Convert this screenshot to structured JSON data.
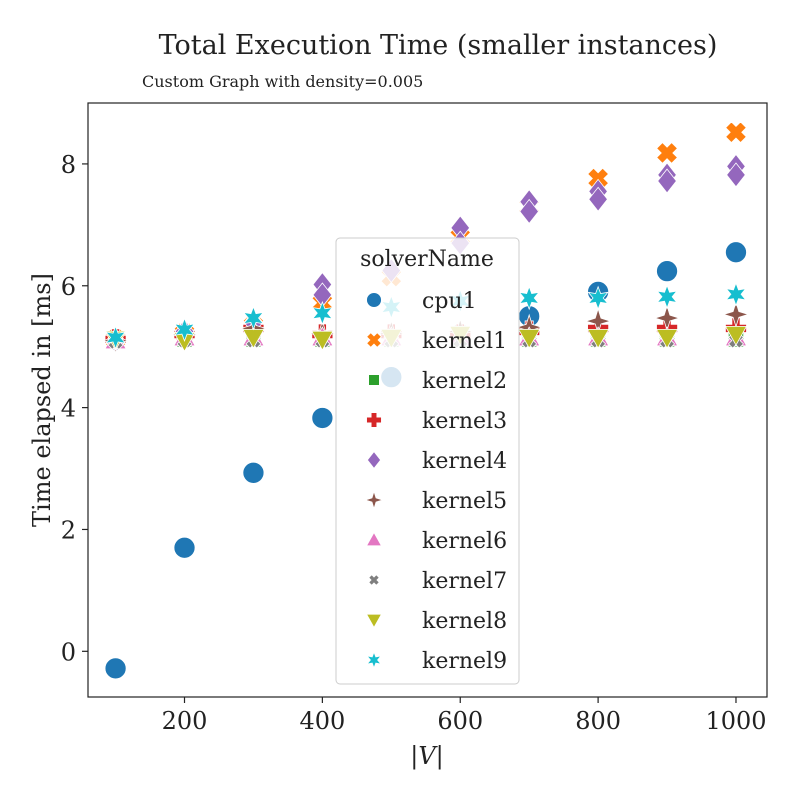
{
  "chart_data": {
    "type": "scatter",
    "title": "Total Execution Time (smaller instances)",
    "subtitle": "Custom Graph with density=0.005",
    "xlabel": "|V|",
    "ylabel": "Time elapsed in [ms]",
    "xlim": [
      60,
      1045
    ],
    "ylim": [
      -0.75,
      9.0
    ],
    "xticks": [
      200,
      400,
      600,
      800,
      1000
    ],
    "yticks": [
      0,
      2,
      4,
      6,
      8
    ],
    "legend_title": "solverName",
    "legend_position": "center",
    "grid": false,
    "series": [
      {
        "name": "cpu1",
        "color": "#1f77b4",
        "marker": "circle",
        "x": [
          100,
          200,
          300,
          400,
          500,
          600,
          700,
          800,
          900,
          1000
        ],
        "y": [
          -0.28,
          1.7,
          2.93,
          3.83,
          4.5,
          5.2,
          5.5,
          5.9,
          6.24,
          6.55
        ]
      },
      {
        "name": "kernel1",
        "color": "#ff7f0e",
        "marker": "x",
        "x": [
          100,
          200,
          300,
          400,
          500,
          600,
          700,
          800,
          900,
          1000
        ],
        "y": [
          5.12,
          5.22,
          5.35,
          5.72,
          6.15,
          6.8,
          7.3,
          7.76,
          8.18,
          8.52
        ]
      },
      {
        "name": "kernel2",
        "color": "#2ca02c",
        "marker": "square",
        "x": [
          100,
          200,
          300,
          400,
          500,
          600,
          700,
          800,
          900,
          1000
        ],
        "y": [
          5.1,
          5.12,
          5.12,
          5.12,
          5.12,
          5.12,
          5.12,
          5.12,
          5.12,
          5.12
        ]
      },
      {
        "name": "kernel3",
        "color": "#d62728",
        "marker": "plus",
        "x": [
          100,
          200,
          300,
          400,
          500,
          600,
          700,
          800,
          900,
          1000
        ],
        "y": [
          5.12,
          5.2,
          5.3,
          5.2,
          5.2,
          5.2,
          5.25,
          5.3,
          5.3,
          5.3
        ]
      },
      {
        "name": "kernel4",
        "color": "#9467bd",
        "marker": "diamond",
        "x": [
          100,
          200,
          300,
          400,
          400,
          500,
          600,
          600,
          700,
          700,
          800,
          800,
          900,
          900,
          1000,
          1000
        ],
        "y": [
          5.1,
          5.25,
          5.4,
          6.02,
          5.85,
          6.25,
          6.95,
          6.7,
          7.38,
          7.22,
          7.55,
          7.42,
          7.82,
          7.72,
          7.96,
          7.82
        ]
      },
      {
        "name": "kernel5",
        "color": "#8c564b",
        "marker": "star4",
        "x": [
          100,
          200,
          300,
          400,
          500,
          600,
          700,
          800,
          900,
          1000
        ],
        "y": [
          5.1,
          5.2,
          5.3,
          5.22,
          5.22,
          5.25,
          5.32,
          5.42,
          5.47,
          5.53
        ]
      },
      {
        "name": "kernel6",
        "color": "#e377c2",
        "marker": "triangle-up",
        "x": [
          100,
          200,
          300,
          400,
          500,
          600,
          700,
          800,
          900,
          1000
        ],
        "y": [
          5.1,
          5.15,
          5.15,
          5.15,
          5.15,
          5.15,
          5.15,
          5.15,
          5.15,
          5.15
        ]
      },
      {
        "name": "kernel7",
        "color": "#7f7f7f",
        "marker": "x-small",
        "x": [
          100,
          200,
          300,
          400,
          500,
          600,
          700,
          800,
          900,
          1000
        ],
        "y": [
          5.08,
          5.1,
          5.1,
          5.1,
          5.1,
          5.1,
          5.1,
          5.1,
          5.1,
          5.1
        ]
      },
      {
        "name": "kernel8",
        "color": "#bcbd22",
        "marker": "triangle-down",
        "x": [
          100,
          200,
          300,
          400,
          500,
          600,
          700,
          800,
          900,
          1000
        ],
        "y": [
          5.12,
          5.1,
          5.15,
          5.12,
          5.15,
          5.2,
          5.15,
          5.15,
          5.15,
          5.2
        ]
      },
      {
        "name": "kernel9",
        "color": "#17becf",
        "marker": "star6",
        "x": [
          100,
          200,
          300,
          400,
          500,
          600,
          700,
          800,
          900,
          1000
        ],
        "y": [
          5.15,
          5.28,
          5.47,
          5.55,
          5.65,
          5.75,
          5.8,
          5.8,
          5.82,
          5.86
        ]
      }
    ]
  }
}
